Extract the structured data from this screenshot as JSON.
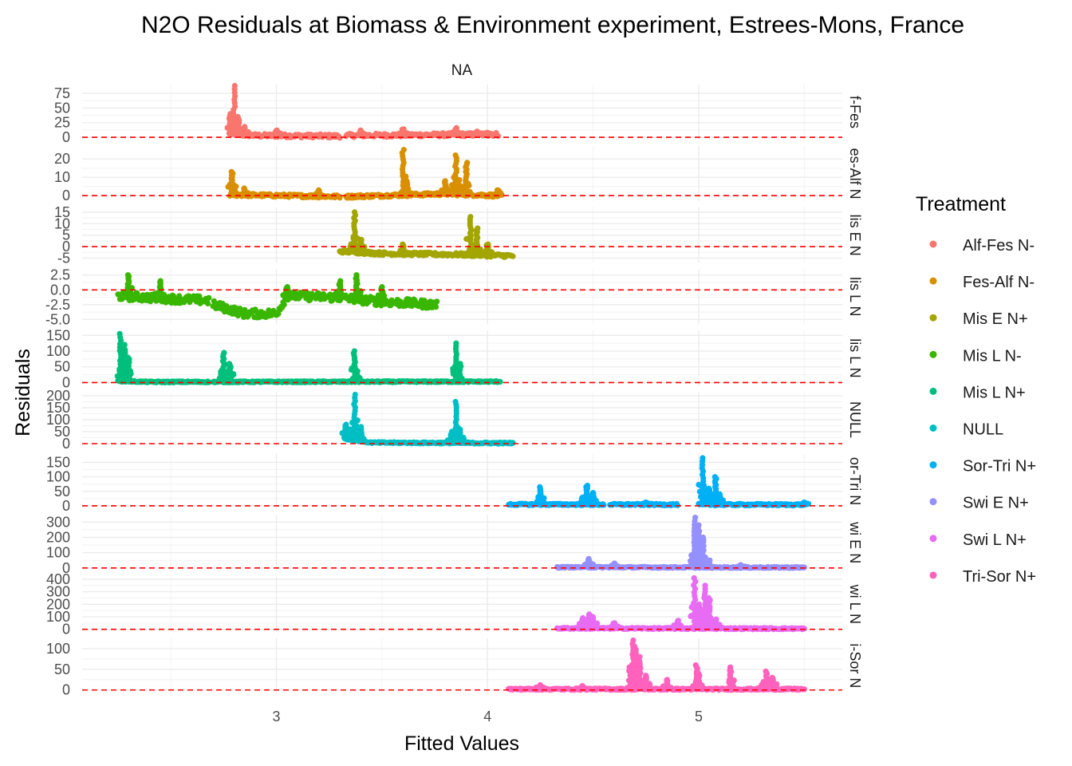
{
  "chart_data": {
    "type": "scatter",
    "title": "N2O Residuals at Biomass & Environment experiment, Estrees-Mons, France",
    "facet_top_label": "NA",
    "xlabel": "Fitted Values",
    "ylabel": "Residuals",
    "xlim": [
      2.08,
      5.68
    ],
    "x_ticks": [
      3,
      4,
      5
    ],
    "x_tick_labels": [
      "3",
      "4",
      "5"
    ],
    "reference_line": {
      "y": 0,
      "color": "#ff0000",
      "style": "dashed"
    },
    "grid": true,
    "legend": {
      "title": "Treatment",
      "position": "right",
      "entries": [
        "Alf-Fes N-",
        "Fes-Alf N-",
        "Mis E N+",
        "Mis L N-",
        "Mis L N+",
        "NULL",
        "Sor-Tri N+",
        "Swi E N+",
        "Swi L N+",
        "Tri-Sor N+"
      ]
    },
    "panels": [
      {
        "name": "Alf-Fes N-",
        "strip_label": "f-Fes",
        "color": "#F8766D",
        "ylim": [
          -4,
          90
        ],
        "y_ticks": [
          0,
          25,
          50,
          75
        ],
        "y_tick_labels": [
          "0",
          "25",
          "50",
          "75"
        ],
        "segments": [
          [
            2.78,
            3.3
          ],
          [
            3.33,
            4.05
          ]
        ],
        "baseline": [
          [
            2.78,
            6
          ],
          [
            2.9,
            3
          ],
          [
            3.3,
            2
          ],
          [
            3.33,
            3
          ],
          [
            4.05,
            5
          ]
        ],
        "noise": 3,
        "spikes": [
          [
            2.78,
            40
          ],
          [
            2.8,
            88
          ],
          [
            2.82,
            35
          ],
          [
            2.85,
            18
          ],
          [
            3.0,
            12
          ],
          [
            3.4,
            12
          ],
          [
            3.6,
            14
          ],
          [
            3.85,
            16
          ],
          [
            3.95,
            10
          ],
          [
            4.0,
            8
          ]
        ]
      },
      {
        "name": "Fes-Alf N-",
        "strip_label": "es-Alf N",
        "color": "#D89000",
        "ylim": [
          -3,
          27
        ],
        "y_ticks": [
          0,
          10,
          20
        ],
        "y_tick_labels": [
          "0",
          "10",
          "20"
        ],
        "segments": [
          [
            2.78,
            3.3
          ],
          [
            3.33,
            4.06
          ]
        ],
        "baseline": [
          [
            2.78,
            0.5
          ],
          [
            3.3,
            -0.5
          ],
          [
            3.33,
            -0.5
          ],
          [
            3.8,
            1
          ],
          [
            4.06,
            0
          ]
        ],
        "noise": 0.8,
        "spikes": [
          [
            2.79,
            13
          ],
          [
            2.85,
            4
          ],
          [
            3.2,
            3
          ],
          [
            3.6,
            25
          ],
          [
            3.62,
            8
          ],
          [
            3.8,
            8
          ],
          [
            3.85,
            22
          ],
          [
            3.9,
            18
          ],
          [
            4.05,
            3
          ]
        ]
      },
      {
        "name": "Mis E N+",
        "strip_label": "lis E N",
        "color": "#A3A500",
        "ylim": [
          -7,
          17
        ],
        "y_ticks": [
          -5,
          0,
          5,
          10,
          15
        ],
        "y_tick_labels": [
          "-5",
          "0",
          "5",
          "10",
          "15"
        ],
        "segments": [
          [
            3.3,
            4.12
          ]
        ],
        "baseline": [
          [
            3.3,
            -2
          ],
          [
            3.5,
            -3
          ],
          [
            3.9,
            -3.5
          ],
          [
            4.12,
            -4
          ]
        ],
        "noise": 0.7,
        "spikes": [
          [
            3.37,
            15
          ],
          [
            3.4,
            3
          ],
          [
            3.6,
            1
          ],
          [
            3.92,
            13
          ],
          [
            3.95,
            8
          ],
          [
            4.0,
            1
          ]
        ]
      },
      {
        "name": "Mis L N-",
        "strip_label": "lis L N",
        "color": "#39B600",
        "ylim": [
          -5.8,
          3.5
        ],
        "y_ticks": [
          -5,
          -2.5,
          0,
          2.5
        ],
        "y_tick_labels": [
          "-5.0",
          "-2.5",
          "0.0",
          "2.5"
        ],
        "segments": [
          [
            2.25,
            2.68
          ],
          [
            2.7,
            3.0
          ],
          [
            3.0,
            3.76
          ]
        ],
        "baseline": [
          [
            2.25,
            -1
          ],
          [
            2.5,
            -1.5
          ],
          [
            2.68,
            -1.8
          ],
          [
            2.7,
            -2.5
          ],
          [
            2.85,
            -4
          ],
          [
            3.0,
            -4
          ],
          [
            3.05,
            -1
          ],
          [
            3.3,
            -1.3
          ],
          [
            3.5,
            -2
          ],
          [
            3.76,
            -2.5
          ]
        ],
        "noise": 0.7,
        "spikes": [
          [
            2.3,
            2.5
          ],
          [
            2.45,
            1.5
          ],
          [
            3.05,
            0.5
          ],
          [
            3.3,
            1.5
          ],
          [
            3.38,
            2.5
          ],
          [
            3.5,
            0.5
          ]
        ]
      },
      {
        "name": "Mis L N+",
        "strip_label": "lis L N",
        "color": "#00BF7D",
        "ylim": [
          -10,
          165
        ],
        "y_ticks": [
          0,
          50,
          100,
          150
        ],
        "y_tick_labels": [
          "0",
          "50",
          "100",
          "150"
        ],
        "segments": [
          [
            2.25,
            2.68
          ],
          [
            2.7,
            4.06
          ]
        ],
        "baseline": [
          [
            2.25,
            5
          ],
          [
            2.4,
            2
          ],
          [
            4.06,
            3
          ]
        ],
        "noise": 2,
        "spikes": [
          [
            2.26,
            155
          ],
          [
            2.28,
            120
          ],
          [
            2.3,
            80
          ],
          [
            2.75,
            95
          ],
          [
            2.78,
            60
          ],
          [
            3.37,
            100
          ],
          [
            3.38,
            30
          ],
          [
            3.85,
            125
          ],
          [
            3.87,
            60
          ]
        ]
      },
      {
        "name": "NULL",
        "strip_label": "NULL",
        "color": "#00BFC4",
        "ylim": [
          -15,
          215
        ],
        "y_ticks": [
          0,
          50,
          100,
          150,
          200
        ],
        "y_tick_labels": [
          "0",
          "50",
          "100",
          "150",
          "200"
        ],
        "segments": [
          [
            3.33,
            4.12
          ]
        ],
        "baseline": [
          [
            3.33,
            20
          ],
          [
            3.45,
            4
          ],
          [
            4.12,
            2
          ]
        ],
        "noise": 3,
        "spikes": [
          [
            3.33,
            80
          ],
          [
            3.35,
            60
          ],
          [
            3.37,
            205
          ],
          [
            3.4,
            70
          ],
          [
            3.83,
            40
          ],
          [
            3.85,
            175
          ],
          [
            3.87,
            60
          ]
        ]
      },
      {
        "name": "Sor-Tri N+",
        "strip_label": "or-Tri N",
        "color": "#00B0F6",
        "ylim": [
          -10,
          180
        ],
        "y_ticks": [
          0,
          50,
          100,
          150
        ],
        "y_tick_labels": [
          "0",
          "50",
          "100",
          "150"
        ],
        "segments": [
          [
            4.1,
            4.55
          ],
          [
            4.58,
            4.9
          ],
          [
            5.0,
            5.5
          ]
        ],
        "baseline": [
          [
            4.1,
            5
          ],
          [
            5.5,
            4
          ]
        ],
        "noise": 3,
        "spikes": [
          [
            4.25,
            65
          ],
          [
            4.45,
            30
          ],
          [
            4.47,
            70
          ],
          [
            4.5,
            45
          ],
          [
            4.75,
            12
          ],
          [
            5.02,
            165
          ],
          [
            5.05,
            60
          ],
          [
            5.08,
            100
          ],
          [
            5.1,
            40
          ],
          [
            5.5,
            12
          ]
        ]
      },
      {
        "name": "Swi E N+",
        "strip_label": "wi E N",
        "color": "#9590FF",
        "ylim": [
          -15,
          345
        ],
        "y_ticks": [
          0,
          100,
          200,
          300
        ],
        "y_tick_labels": [
          "0",
          "100",
          "200",
          "300"
        ],
        "segments": [
          [
            4.33,
            5.5
          ]
        ],
        "baseline": [
          [
            4.33,
            5
          ],
          [
            5.5,
            3
          ]
        ],
        "noise": 4,
        "spikes": [
          [
            4.48,
            60
          ],
          [
            4.5,
            25
          ],
          [
            4.6,
            30
          ],
          [
            4.98,
            330
          ],
          [
            5.0,
            280
          ],
          [
            5.02,
            200
          ],
          [
            5.05,
            50
          ],
          [
            5.2,
            20
          ]
        ]
      },
      {
        "name": "Swi L N+",
        "strip_label": "wi L N",
        "color": "#E76BF3",
        "ylim": [
          -20,
          420
        ],
        "y_ticks": [
          0,
          100,
          200,
          300,
          400
        ],
        "y_tick_labels": [
          "0",
          "100",
          "200",
          "300",
          "400"
        ],
        "segments": [
          [
            4.33,
            5.5
          ]
        ],
        "baseline": [
          [
            4.33,
            8
          ],
          [
            5.5,
            5
          ]
        ],
        "noise": 6,
        "spikes": [
          [
            4.45,
            90
          ],
          [
            4.48,
            120
          ],
          [
            4.5,
            100
          ],
          [
            4.6,
            50
          ],
          [
            4.9,
            70
          ],
          [
            4.98,
            410
          ],
          [
            5.0,
            200
          ],
          [
            5.03,
            350
          ],
          [
            5.05,
            250
          ],
          [
            5.08,
            80
          ]
        ]
      },
      {
        "name": "Tri-Sor N+",
        "strip_label": "i-Sor N",
        "color": "#FF62BC",
        "ylim": [
          -8,
          125
        ],
        "y_ticks": [
          0,
          50,
          100
        ],
        "y_tick_labels": [
          "0",
          "50",
          "100"
        ],
        "segments": [
          [
            4.1,
            5.5
          ]
        ],
        "baseline": [
          [
            4.1,
            2
          ],
          [
            5.5,
            2
          ]
        ],
        "noise": 2,
        "spikes": [
          [
            4.25,
            12
          ],
          [
            4.45,
            10
          ],
          [
            4.68,
            60
          ],
          [
            4.69,
            120
          ],
          [
            4.7,
            105
          ],
          [
            4.72,
            80
          ],
          [
            4.75,
            35
          ],
          [
            4.85,
            25
          ],
          [
            4.99,
            60
          ],
          [
            5.0,
            40
          ],
          [
            5.15,
            55
          ],
          [
            5.3,
            15
          ],
          [
            5.32,
            45
          ],
          [
            5.35,
            30
          ]
        ]
      }
    ]
  }
}
